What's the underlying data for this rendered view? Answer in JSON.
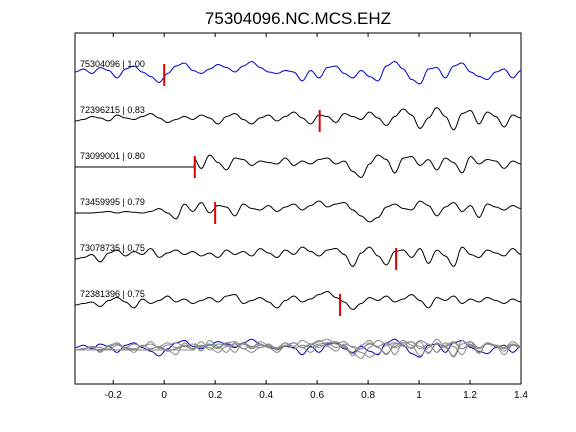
{
  "chart_data": {
    "type": "line",
    "title": "75304096.NC.MCS.EHZ",
    "xlabel": "",
    "ylabel": "",
    "xlim": [
      -0.35,
      1.4
    ],
    "xticks": [
      "-0.2",
      "0",
      "0.2",
      "0.4",
      "0.6",
      "0.8",
      "1",
      "1.2",
      "1.4"
    ],
    "xtick_values": [
      -0.2,
      0,
      0.2,
      0.4,
      0.6,
      0.8,
      1.0,
      1.2,
      1.4
    ],
    "grid": false,
    "legend": "none",
    "colors": {
      "reference": "#0000cc",
      "trace": "#000000",
      "pick": "#dd0000",
      "overlay": "#888888",
      "frame": "#000000"
    },
    "series": [
      {
        "name": "75304096 | 1.00",
        "pick": 0.0,
        "color": "#0000cc",
        "flat_until": null,
        "values": [
          0.2,
          0.4,
          0.1,
          0.5,
          0.3,
          -0.2,
          0.4,
          0.6,
          0.2,
          -0.1,
          -0.5,
          0.1,
          0.6,
          0.8,
          0.3,
          0.1,
          0.4,
          0.7,
          0.5,
          0.2,
          0.6,
          0.9,
          0.5,
          0.2,
          0.1,
          0.3,
          0.2,
          -0.4,
          0.3,
          -0.2,
          0.5,
          0.6,
          0.1,
          -0.2,
          0.3,
          -0.1,
          -0.4,
          0.6,
          0.9,
          0.4,
          -0.3,
          -0.6,
          0.4,
          0.5,
          -0.2,
          0.6,
          0.8,
          0.2,
          -0.1,
          -0.3,
          0.2,
          0.4,
          -0.2,
          0.3
        ]
      },
      {
        "name": "72396215 | 0.83",
        "pick": 0.61,
        "color": "#000000",
        "flat_until": null,
        "values": [
          0.0,
          0.1,
          0.3,
          0.2,
          0.0,
          0.4,
          0.2,
          0.1,
          0.3,
          0.5,
          0.2,
          -0.1,
          0.1,
          0.3,
          0.1,
          0.4,
          0.2,
          -0.2,
          0.3,
          0.5,
          0.1,
          -0.2,
          0.2,
          0.4,
          0.0,
          0.3,
          0.6,
          0.2,
          -0.2,
          0.4,
          0.3,
          -0.1,
          0.5,
          0.3,
          0.1,
          0.6,
          0.2,
          -0.3,
          0.3,
          0.8,
          0.4,
          -0.5,
          0.2,
          0.9,
          0.3,
          -0.6,
          0.5,
          0.7,
          -0.2,
          0.6,
          0.3,
          -0.4,
          0.4,
          0.2
        ]
      },
      {
        "name": "73099001 | 0.80",
        "pick": 0.12,
        "color": "#000000",
        "flat_until": 0.12,
        "values": [
          0.0,
          0.0,
          0.0,
          0.0,
          0.0,
          0.0,
          0.0,
          0.0,
          0.0,
          0.0,
          0.0,
          0.1,
          0.5,
          0.2,
          0.7,
          -0.1,
          0.8,
          0.3,
          -0.2,
          0.6,
          0.5,
          0.1,
          0.4,
          0.3,
          0.2,
          0.6,
          0.1,
          0.4,
          0.2,
          0.5,
          0.6,
          0.2,
          0.4,
          -0.3,
          -0.7,
          0.2,
          0.8,
          0.5,
          -0.4,
          0.6,
          0.7,
          0.1,
          0.5,
          -0.2,
          0.6,
          0.3,
          -0.4,
          0.7,
          0.2,
          0.5,
          0.4,
          -0.1,
          0.4,
          0.2
        ]
      },
      {
        "name": "73459995 | 0.79",
        "pick": 0.2,
        "color": "#000000",
        "flat_until": null,
        "values": [
          0.0,
          0.0,
          0.0,
          0.05,
          0.1,
          0.0,
          0.1,
          0.05,
          0.0,
          0.1,
          0.3,
          0.0,
          -0.4,
          0.6,
          0.1,
          0.7,
          0.0,
          0.5,
          0.4,
          -0.2,
          0.6,
          0.3,
          0.2,
          0.5,
          0.1,
          0.4,
          0.6,
          0.2,
          0.5,
          0.8,
          0.4,
          0.6,
          0.7,
          0.2,
          -0.2,
          -0.6,
          -0.3,
          0.4,
          0.6,
          0.3,
          0.2,
          0.8,
          0.5,
          -0.2,
          0.4,
          0.7,
          0.1,
          0.5,
          -0.3,
          0.6,
          0.4,
          0.2,
          0.5,
          0.3
        ]
      },
      {
        "name": "73078735 | 0.75",
        "pick": 0.91,
        "color": "#000000",
        "flat_until": null,
        "values": [
          0.0,
          0.1,
          0.3,
          -0.2,
          0.4,
          0.6,
          0.2,
          0.5,
          0.3,
          0.7,
          0.1,
          0.4,
          0.6,
          0.3,
          0.5,
          0.2,
          0.4,
          0.1,
          0.6,
          0.3,
          0.5,
          0.2,
          0.7,
          0.4,
          0.1,
          0.6,
          0.3,
          0.8,
          0.5,
          0.2,
          0.6,
          0.7,
          0.3,
          -0.5,
          0.4,
          0.8,
          0.2,
          -0.4,
          0.5,
          0.6,
          0.1,
          0.7,
          -0.3,
          0.6,
          0.2,
          -0.5,
          0.8,
          0.3,
          0.1,
          0.6,
          0.4,
          0.2,
          0.7,
          0.3
        ]
      },
      {
        "name": "72381396 | 0.75",
        "pick": 0.69,
        "color": "#000000",
        "flat_until": null,
        "values": [
          0.0,
          0.1,
          0.2,
          -0.1,
          0.3,
          0.5,
          0.2,
          -0.2,
          0.4,
          0.1,
          0.3,
          0.6,
          0.2,
          0.4,
          0.1,
          0.3,
          0.5,
          0.2,
          0.6,
          0.7,
          0.1,
          0.3,
          0.5,
          0.2,
          -0.2,
          0.3,
          0.6,
          0.2,
          0.4,
          0.7,
          0.9,
          0.5,
          0.2,
          -0.3,
          0.1,
          0.5,
          0.3,
          0.6,
          0.2,
          0.4,
          0.7,
          0.3,
          -0.2,
          0.5,
          0.3,
          0.6,
          0.1,
          0.4,
          0.2,
          0.5,
          0.3,
          0.1,
          0.4,
          0.2
        ]
      }
    ]
  }
}
